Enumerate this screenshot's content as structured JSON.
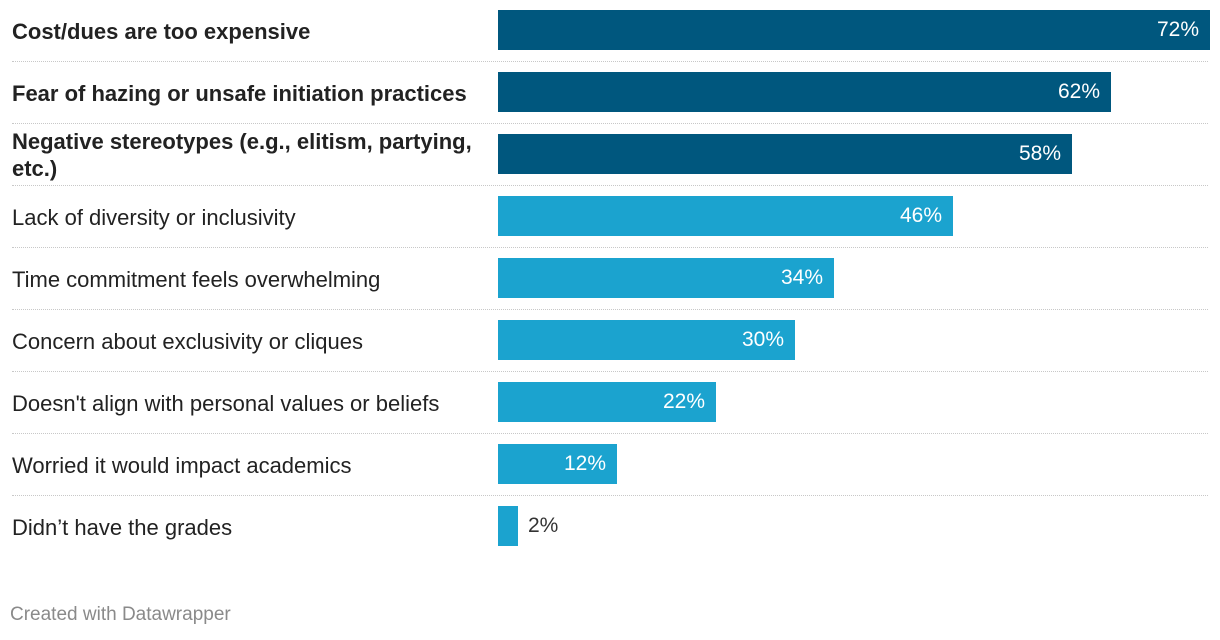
{
  "chart_data": {
    "type": "bar",
    "orientation": "horizontal",
    "title": "",
    "xlabel": "",
    "ylabel": "",
    "xlim": [
      0,
      72
    ],
    "grid": false,
    "value_suffix": "%",
    "categories": [
      "Cost/dues are too expensive",
      "Fear of hazing or unsafe initiation practices",
      "Negative stereotypes (e.g., elitism, partying, etc.)",
      "Lack of diversity or inclusivity",
      "Time commitment feels overwhelming",
      "Concern about exclusivity or cliques",
      "Doesn't align with personal values or beliefs",
      "Worried it would impact academics",
      "Didn’t have the grades"
    ],
    "values": [
      72,
      62,
      58,
      46,
      34,
      30,
      22,
      12,
      2
    ],
    "value_labels": [
      "72%",
      "62%",
      "58%",
      "46%",
      "34%",
      "30%",
      "22%",
      "12%",
      "2%"
    ],
    "highlighted": [
      true,
      true,
      true,
      false,
      false,
      false,
      false,
      false,
      false
    ],
    "colors": {
      "highlight": "#00577e",
      "default": "#1ba3cf"
    }
  },
  "footer": {
    "credit": "Created with Datawrapper"
  }
}
